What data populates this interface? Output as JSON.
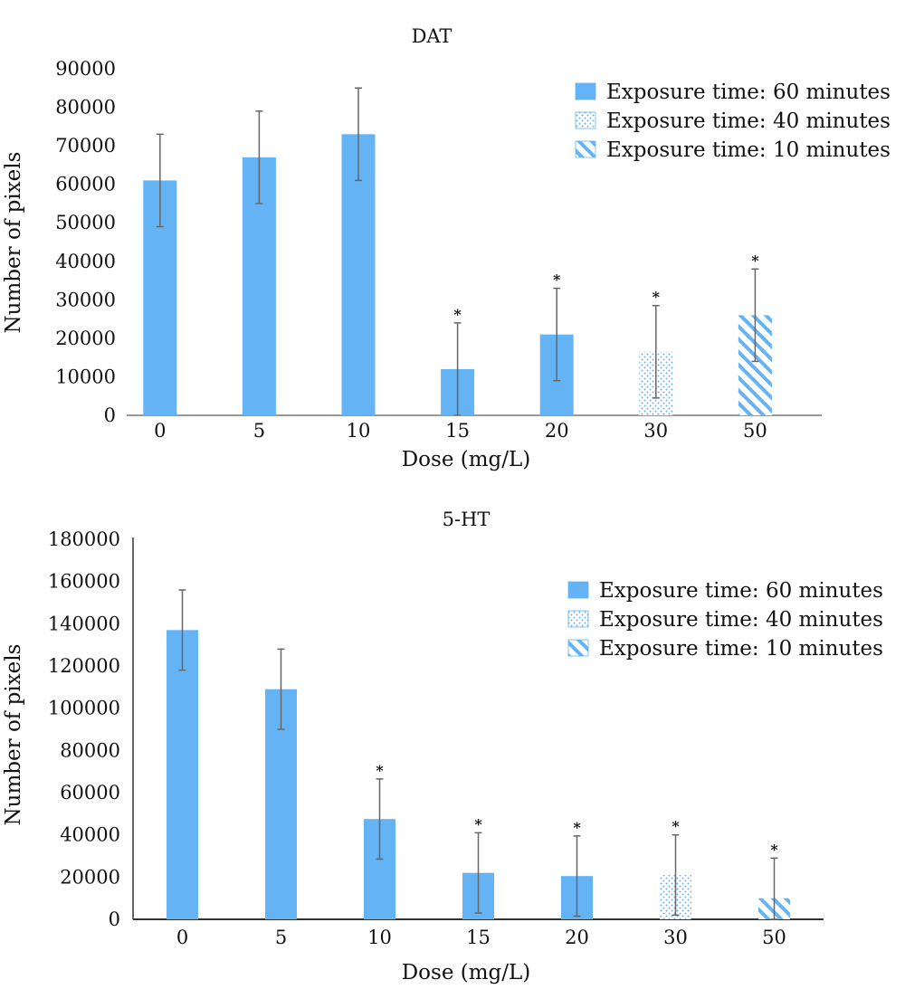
{
  "figure": {
    "accent_color": "#64b3f4",
    "error_bar_color": "#666666",
    "axis_color": "#333333"
  },
  "chart_data": [
    {
      "type": "bar",
      "title": "DAT",
      "xlabel": "Dose (mg/L)",
      "ylabel": "Number of pixels",
      "ylim": [
        0,
        90000
      ],
      "yticks": [
        "0",
        "10000",
        "20000",
        "30000",
        "40000",
        "50000",
        "60000",
        "70000",
        "80000",
        "90000"
      ],
      "categories": [
        "0",
        "5",
        "10",
        "15",
        "20",
        "30",
        "50"
      ],
      "values": [
        61000,
        67000,
        73000,
        12000,
        21000,
        16500,
        26000
      ],
      "errors": [
        12000,
        12000,
        12000,
        12000,
        12000,
        12000,
        12000
      ],
      "fill_patterns": [
        "solid",
        "solid",
        "solid",
        "solid",
        "solid",
        "dots",
        "stripes"
      ],
      "significance_marks": [
        "",
        "",
        "",
        "*",
        "*",
        "*",
        "*"
      ],
      "legend": [
        {
          "label": "Exposure time: 60 minutes",
          "pattern": "solid"
        },
        {
          "label": "Exposure time: 40 minutes",
          "pattern": "dots"
        },
        {
          "label": "Exposure time: 10 minutes",
          "pattern": "stripes"
        }
      ],
      "legend_position": "top-right",
      "grid": false
    },
    {
      "type": "bar",
      "title": "5-HT",
      "xlabel": "Dose (mg/L)",
      "ylabel": "Number of pixels",
      "ylim": [
        0,
        180000
      ],
      "yticks": [
        "0",
        "20000",
        "40000",
        "60000",
        "80000",
        "100000",
        "120000",
        "140000",
        "160000",
        "180000"
      ],
      "categories": [
        "0",
        "5",
        "10",
        "15",
        "20",
        "30",
        "50"
      ],
      "values": [
        137000,
        109000,
        47500,
        22000,
        20500,
        21000,
        10000
      ],
      "errors": [
        19000,
        19000,
        19000,
        19000,
        19000,
        19000,
        19000
      ],
      "fill_patterns": [
        "solid",
        "solid",
        "solid",
        "solid",
        "solid",
        "dots",
        "stripes"
      ],
      "significance_marks": [
        "",
        "",
        "*",
        "*",
        "*",
        "*",
        "*"
      ],
      "legend": [
        {
          "label": "Exposure time: 60 minutes",
          "pattern": "solid"
        },
        {
          "label": "Exposure time: 40 minutes",
          "pattern": "dots"
        },
        {
          "label": "Exposure time: 10 minutes",
          "pattern": "stripes"
        }
      ],
      "legend_position": "top-right",
      "grid": false
    }
  ]
}
